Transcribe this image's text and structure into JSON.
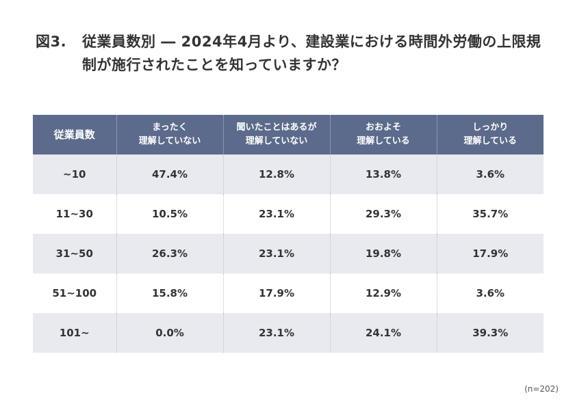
{
  "title": {
    "figure_label": "図3.",
    "text": "従業員数別 ― 2024年4月より、建設業における時間外労働の上限規制が施行されたことを知っていますか？"
  },
  "note": "(n=202)",
  "chart_data": {
    "type": "table",
    "columns": [
      {
        "lines": [
          "従業員数"
        ]
      },
      {
        "lines": [
          "まったく",
          "理解していない"
        ]
      },
      {
        "lines": [
          "聞いたことはあるが",
          "理解していない"
        ]
      },
      {
        "lines": [
          "おおよそ",
          "理解している"
        ]
      },
      {
        "lines": [
          "しっかり",
          "理解している"
        ]
      }
    ],
    "rows": [
      [
        "~10",
        "47.4%",
        "12.8%",
        "13.8%",
        "3.6%"
      ],
      [
        "11~30",
        "10.5%",
        "23.1%",
        "29.3%",
        "35.7%"
      ],
      [
        "31~50",
        "26.3%",
        "23.1%",
        "19.8%",
        "17.9%"
      ],
      [
        "51~100",
        "15.8%",
        "17.9%",
        "12.9%",
        "3.6%"
      ],
      [
        "101~",
        "0.0%",
        "23.1%",
        "24.1%",
        "39.3%"
      ]
    ]
  }
}
